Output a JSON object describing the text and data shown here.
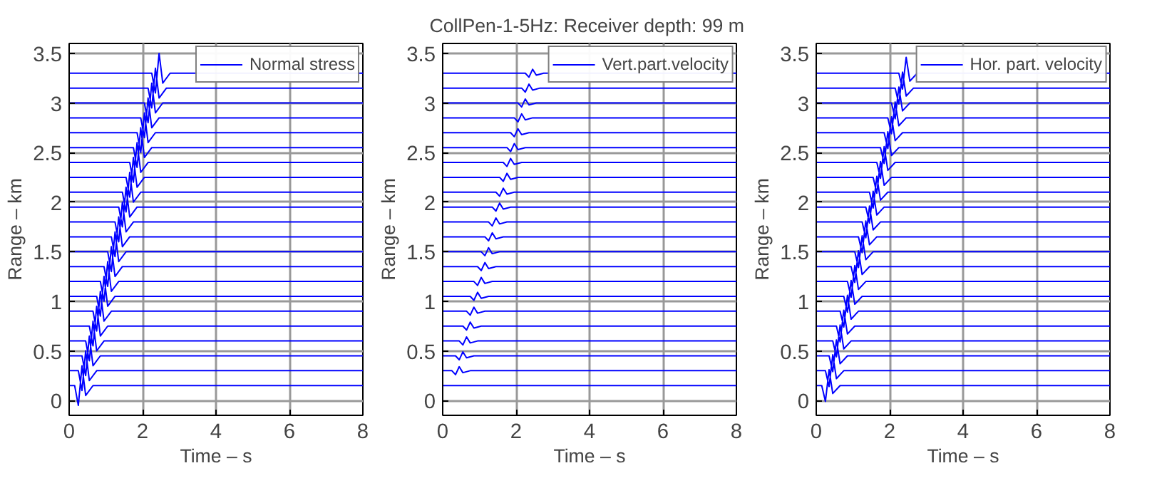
{
  "chart_data": [
    {
      "type": "line",
      "xlabel": "Time – s",
      "ylabel": "Range – km",
      "xlim": [
        0,
        8
      ],
      "ylim": [
        -0.15,
        3.6
      ],
      "xticks": [
        0,
        2,
        4,
        6,
        8
      ],
      "yticks": [
        0,
        0.5,
        1,
        1.5,
        2,
        2.5,
        3,
        3.5
      ],
      "grid": true,
      "legend": "top right",
      "series": [
        {
          "name": "Normal stress",
          "color": "#0000ff",
          "x": [
            0,
            0.15,
            0.25,
            0.35,
            0.45,
            0.65,
            8,
            null,
            0,
            0.25,
            0.35,
            0.45,
            0.55,
            0.75,
            8,
            null,
            0,
            0.35,
            0.45,
            0.55,
            0.65,
            0.85,
            8,
            null,
            0,
            0.45,
            0.55,
            0.65,
            0.75,
            0.95,
            8,
            null,
            0,
            0.55,
            0.65,
            0.75,
            0.85,
            1.05,
            8,
            null,
            0,
            0.65,
            0.75,
            0.85,
            0.95,
            1.15,
            8,
            null,
            0,
            0.75,
            0.85,
            0.95,
            1.05,
            1.25,
            8,
            null,
            0,
            0.85,
            0.95,
            1.05,
            1.15,
            1.35,
            8,
            null,
            0,
            0.95,
            1.05,
            1.15,
            1.25,
            1.45,
            8,
            null,
            0,
            1.05,
            1.15,
            1.25,
            1.35,
            1.55,
            8,
            null,
            0,
            1.15,
            1.25,
            1.35,
            1.45,
            1.65,
            8,
            null,
            0,
            1.25,
            1.35,
            1.45,
            1.55,
            1.75,
            8,
            null,
            0,
            1.35,
            1.45,
            1.55,
            1.65,
            1.85,
            8,
            null,
            0,
            1.45,
            1.55,
            1.65,
            1.75,
            1.95,
            8,
            null,
            0,
            1.55,
            1.65,
            1.75,
            1.85,
            2.05,
            8,
            null,
            0,
            1.65,
            1.75,
            1.85,
            1.95,
            2.15,
            8,
            null,
            0,
            1.75,
            1.85,
            1.95,
            2.05,
            2.25,
            8,
            null,
            0,
            1.85,
            1.95,
            2.05,
            2.15,
            2.35,
            8,
            null,
            0,
            1.95,
            2.05,
            2.15,
            2.25,
            2.45,
            8,
            null,
            0,
            2.05,
            2.15,
            2.25,
            2.35,
            2.55,
            8,
            null,
            0,
            2.15,
            2.25,
            2.35,
            2.45,
            2.65,
            8,
            null,
            0,
            2.25,
            2.35,
            2.45,
            2.55,
            2.75,
            8
          ],
          "values": [
            0.15,
            0.15,
            -0.05,
            0.35,
            0.05,
            0.15,
            0.15,
            null,
            0.3,
            0.3,
            0.1,
            0.5,
            0.2,
            0.3,
            0.3,
            null,
            0.45,
            0.45,
            0.25,
            0.65,
            0.35,
            0.45,
            0.45,
            null,
            0.6,
            0.6,
            0.4,
            0.8,
            0.5,
            0.6,
            0.6,
            null,
            0.75,
            0.75,
            0.55,
            0.95,
            0.65,
            0.75,
            0.75,
            null,
            0.9,
            0.9,
            0.7,
            1.1,
            0.8,
            0.9,
            0.9,
            null,
            1.05,
            1.05,
            0.85,
            1.25,
            0.95,
            1.05,
            1.05,
            null,
            1.2,
            1.2,
            1.0,
            1.4,
            1.1,
            1.2,
            1.2,
            null,
            1.35,
            1.35,
            1.15,
            1.55,
            1.25,
            1.35,
            1.35,
            null,
            1.5,
            1.5,
            1.3,
            1.7,
            1.4,
            1.5,
            1.5,
            null,
            1.65,
            1.65,
            1.45,
            1.85,
            1.55,
            1.65,
            1.65,
            null,
            1.8,
            1.8,
            1.6,
            2.0,
            1.7,
            1.8,
            1.8,
            null,
            1.95,
            1.95,
            1.75,
            2.15,
            1.85,
            1.95,
            1.95,
            null,
            2.1,
            2.1,
            1.9,
            2.3,
            2.0,
            2.1,
            2.1,
            null,
            2.25,
            2.25,
            2.05,
            2.45,
            2.15,
            2.25,
            2.25,
            null,
            2.4,
            2.4,
            2.2,
            2.6,
            2.3,
            2.4,
            2.4,
            null,
            2.55,
            2.55,
            2.35,
            2.75,
            2.45,
            2.55,
            2.55,
            null,
            2.7,
            2.7,
            2.5,
            2.9,
            2.6,
            2.7,
            2.7,
            null,
            2.85,
            2.85,
            2.65,
            3.05,
            2.75,
            2.85,
            2.85,
            null,
            3.0,
            3.0,
            2.8,
            3.2,
            2.9,
            3.0,
            3.0,
            null,
            3.15,
            3.15,
            2.95,
            3.35,
            3.05,
            3.15,
            3.15,
            null,
            3.3,
            3.3,
            3.1,
            3.5,
            3.2,
            3.3,
            3.3
          ]
        }
      ]
    },
    {
      "type": "line",
      "title": "CollPen-1-5Hz:  Receiver depth: 99 m",
      "xlabel": "Time – s",
      "ylabel": "Range – km",
      "xlim": [
        0,
        8
      ],
      "ylim": [
        -0.15,
        3.6
      ],
      "xticks": [
        0,
        2,
        4,
        6,
        8
      ],
      "yticks": [
        0,
        0.5,
        1,
        1.5,
        2,
        2.5,
        3,
        3.5
      ],
      "grid": true,
      "legend": "top right",
      "series": [
        {
          "name": "Vert.part.velocity",
          "color": "#0000ff",
          "x": [
            0,
            0.15,
            0.25,
            0.35,
            0.45,
            0.65,
            8,
            null,
            0,
            0.25,
            0.35,
            0.45,
            0.55,
            0.75,
            8,
            null,
            0,
            0.35,
            0.45,
            0.55,
            0.65,
            0.85,
            8,
            null,
            0,
            0.45,
            0.55,
            0.65,
            0.75,
            0.95,
            8,
            null,
            0,
            0.55,
            0.65,
            0.75,
            0.85,
            1.05,
            8,
            null,
            0,
            0.65,
            0.75,
            0.85,
            0.95,
            1.15,
            8,
            null,
            0,
            0.75,
            0.85,
            0.95,
            1.05,
            1.25,
            8,
            null,
            0,
            0.85,
            0.95,
            1.05,
            1.15,
            1.35,
            8,
            null,
            0,
            0.95,
            1.05,
            1.15,
            1.25,
            1.45,
            8,
            null,
            0,
            1.05,
            1.15,
            1.25,
            1.35,
            1.55,
            8,
            null,
            0,
            1.15,
            1.25,
            1.35,
            1.45,
            1.65,
            8,
            null,
            0,
            1.25,
            1.35,
            1.45,
            1.55,
            1.75,
            8,
            null,
            0,
            1.35,
            1.45,
            1.55,
            1.65,
            1.85,
            8,
            null,
            0,
            1.45,
            1.55,
            1.65,
            1.75,
            1.95,
            8,
            null,
            0,
            1.55,
            1.65,
            1.75,
            1.85,
            2.05,
            8,
            null,
            0,
            1.65,
            1.75,
            1.85,
            1.95,
            2.15,
            8,
            null,
            0,
            1.75,
            1.85,
            1.95,
            2.05,
            2.25,
            8,
            null,
            0,
            1.85,
            1.95,
            2.05,
            2.15,
            2.35,
            8,
            null,
            0,
            1.95,
            2.05,
            2.15,
            2.25,
            2.45,
            8,
            null,
            0,
            2.05,
            2.15,
            2.25,
            2.35,
            2.55,
            8,
            null,
            0,
            2.15,
            2.25,
            2.35,
            2.45,
            2.65,
            8,
            null,
            0,
            2.25,
            2.35,
            2.45,
            2.55,
            2.75,
            8
          ],
          "values": [
            0.15,
            0.15,
            0.15,
            0.15,
            0.15,
            0.15,
            0.15,
            null,
            0.3,
            0.3,
            0.26,
            0.34,
            0.28,
            0.3,
            0.3,
            null,
            0.45,
            0.45,
            0.41,
            0.49,
            0.43,
            0.45,
            0.45,
            null,
            0.6,
            0.6,
            0.56,
            0.64,
            0.58,
            0.6,
            0.6,
            null,
            0.75,
            0.75,
            0.71,
            0.79,
            0.73,
            0.75,
            0.75,
            null,
            0.9,
            0.9,
            0.86,
            0.94,
            0.88,
            0.9,
            0.9,
            null,
            1.05,
            1.05,
            1.01,
            1.09,
            1.03,
            1.05,
            1.05,
            null,
            1.2,
            1.2,
            1.16,
            1.24,
            1.18,
            1.2,
            1.2,
            null,
            1.35,
            1.35,
            1.31,
            1.39,
            1.33,
            1.35,
            1.35,
            null,
            1.5,
            1.5,
            1.46,
            1.54,
            1.48,
            1.5,
            1.5,
            null,
            1.65,
            1.65,
            1.61,
            1.69,
            1.63,
            1.65,
            1.65,
            null,
            1.8,
            1.8,
            1.76,
            1.84,
            1.78,
            1.8,
            1.8,
            null,
            1.95,
            1.95,
            1.91,
            1.99,
            1.93,
            1.95,
            1.95,
            null,
            2.1,
            2.1,
            2.06,
            2.14,
            2.08,
            2.1,
            2.1,
            null,
            2.25,
            2.25,
            2.21,
            2.29,
            2.23,
            2.25,
            2.25,
            null,
            2.4,
            2.4,
            2.36,
            2.44,
            2.38,
            2.4,
            2.4,
            null,
            2.55,
            2.55,
            2.51,
            2.59,
            2.53,
            2.55,
            2.55,
            null,
            2.7,
            2.7,
            2.66,
            2.74,
            2.68,
            2.7,
            2.7,
            null,
            2.85,
            2.85,
            2.81,
            2.89,
            2.83,
            2.85,
            2.85,
            null,
            3.0,
            3.0,
            2.96,
            3.04,
            2.98,
            3.0,
            3.0,
            null,
            3.15,
            3.15,
            3.11,
            3.19,
            3.13,
            3.15,
            3.15,
            null,
            3.3,
            3.3,
            3.26,
            3.34,
            3.28,
            3.3,
            3.3
          ]
        }
      ]
    },
    {
      "type": "line",
      "xlabel": "Time – s",
      "ylabel": "Range – km",
      "xlim": [
        0,
        8
      ],
      "ylim": [
        -0.15,
        3.6
      ],
      "xticks": [
        0,
        2,
        4,
        6,
        8
      ],
      "yticks": [
        0,
        0.5,
        1,
        1.5,
        2,
        2.5,
        3,
        3.5
      ],
      "grid": true,
      "legend": "top right",
      "series": [
        {
          "name": "Hor. part. velocity",
          "color": "#0000ff",
          "x": [
            0,
            0.15,
            0.25,
            0.35,
            0.45,
            0.65,
            8,
            null,
            0,
            0.25,
            0.35,
            0.45,
            0.55,
            0.75,
            8,
            null,
            0,
            0.35,
            0.45,
            0.55,
            0.65,
            0.85,
            8,
            null,
            0,
            0.45,
            0.55,
            0.65,
            0.75,
            0.95,
            8,
            null,
            0,
            0.55,
            0.65,
            0.75,
            0.85,
            1.05,
            8,
            null,
            0,
            0.65,
            0.75,
            0.85,
            0.95,
            1.15,
            8,
            null,
            0,
            0.75,
            0.85,
            0.95,
            1.05,
            1.25,
            8,
            null,
            0,
            0.85,
            0.95,
            1.05,
            1.15,
            1.35,
            8,
            null,
            0,
            0.95,
            1.05,
            1.15,
            1.25,
            1.45,
            8,
            null,
            0,
            1.05,
            1.15,
            1.25,
            1.35,
            1.55,
            8,
            null,
            0,
            1.15,
            1.25,
            1.35,
            1.45,
            1.65,
            8,
            null,
            0,
            1.25,
            1.35,
            1.45,
            1.55,
            1.75,
            8,
            null,
            0,
            1.35,
            1.45,
            1.55,
            1.65,
            1.85,
            8,
            null,
            0,
            1.45,
            1.55,
            1.65,
            1.75,
            1.95,
            8,
            null,
            0,
            1.55,
            1.65,
            1.75,
            1.85,
            2.05,
            8,
            null,
            0,
            1.65,
            1.75,
            1.85,
            1.95,
            2.15,
            8,
            null,
            0,
            1.75,
            1.85,
            1.95,
            2.05,
            2.25,
            8,
            null,
            0,
            1.85,
            1.95,
            2.05,
            2.15,
            2.35,
            8,
            null,
            0,
            1.95,
            2.05,
            2.15,
            2.25,
            2.45,
            8,
            null,
            0,
            2.05,
            2.15,
            2.25,
            2.35,
            2.55,
            8,
            null,
            0,
            2.15,
            2.25,
            2.35,
            2.45,
            2.65,
            8,
            null,
            0,
            2.25,
            2.35,
            2.45,
            2.55,
            2.75,
            8
          ],
          "values": [
            0.15,
            0.15,
            -0.01,
            0.31,
            0.07,
            0.15,
            0.15,
            null,
            0.3,
            0.3,
            0.14,
            0.46,
            0.22,
            0.3,
            0.3,
            null,
            0.45,
            0.45,
            0.29,
            0.61,
            0.37,
            0.45,
            0.45,
            null,
            0.6,
            0.6,
            0.44,
            0.76,
            0.52,
            0.6,
            0.6,
            null,
            0.75,
            0.75,
            0.59,
            0.91,
            0.67,
            0.75,
            0.75,
            null,
            0.9,
            0.9,
            0.74,
            1.06,
            0.82,
            0.9,
            0.9,
            null,
            1.05,
            1.05,
            0.89,
            1.21,
            0.97,
            1.05,
            1.05,
            null,
            1.2,
            1.2,
            1.04,
            1.36,
            1.12,
            1.2,
            1.2,
            null,
            1.35,
            1.35,
            1.19,
            1.51,
            1.27,
            1.35,
            1.35,
            null,
            1.5,
            1.5,
            1.34,
            1.66,
            1.42,
            1.5,
            1.5,
            null,
            1.65,
            1.65,
            1.49,
            1.81,
            1.57,
            1.65,
            1.65,
            null,
            1.8,
            1.8,
            1.64,
            1.96,
            1.72,
            1.8,
            1.8,
            null,
            1.95,
            1.95,
            1.79,
            2.11,
            1.87,
            1.95,
            1.95,
            null,
            2.1,
            2.1,
            1.94,
            2.26,
            2.02,
            2.1,
            2.1,
            null,
            2.25,
            2.25,
            2.09,
            2.41,
            2.17,
            2.25,
            2.25,
            null,
            2.4,
            2.4,
            2.24,
            2.56,
            2.32,
            2.4,
            2.4,
            null,
            2.55,
            2.55,
            2.39,
            2.71,
            2.47,
            2.55,
            2.55,
            null,
            2.7,
            2.7,
            2.54,
            2.86,
            2.62,
            2.7,
            2.7,
            null,
            2.85,
            2.85,
            2.69,
            3.01,
            2.77,
            2.85,
            2.85,
            null,
            3.0,
            3.0,
            2.84,
            3.16,
            2.92,
            3.0,
            3.0,
            null,
            3.15,
            3.15,
            2.99,
            3.31,
            3.07,
            3.15,
            3.15,
            null,
            3.3,
            3.3,
            3.14,
            3.46,
            3.22,
            3.3,
            3.3
          ]
        }
      ]
    }
  ]
}
